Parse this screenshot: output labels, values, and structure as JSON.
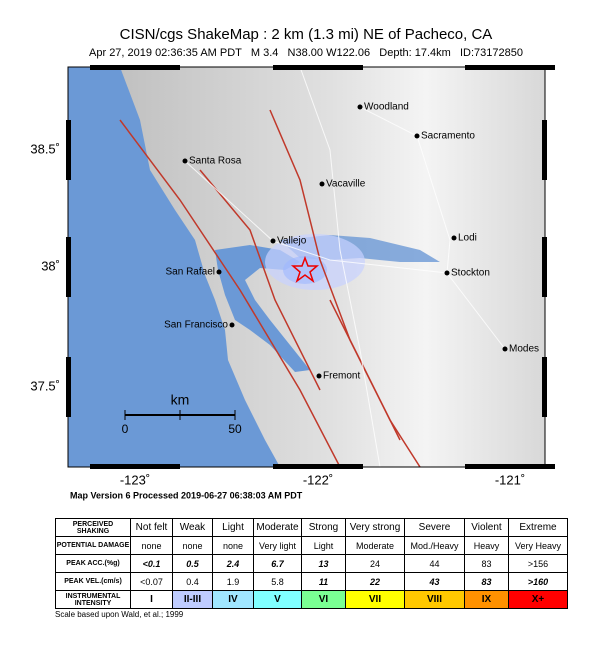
{
  "header": {
    "title": "CISN/cgs ShakeMap : 2 km (1.3 mi) NE of Pacheco, CA",
    "subtitle": "Apr 27, 2019 02:36:35 AM PDT   M 3.4   N38.00 W122.06   Depth: 17.4km   ID:73172850"
  },
  "map": {
    "lat_labels": [
      "38.5˚",
      "38˚",
      "37.5˚"
    ],
    "lon_labels": [
      "-123˚",
      "-122˚",
      "-121˚"
    ],
    "cities": [
      "Woodland",
      "Sacramento",
      "Santa Rosa",
      "Vacaville",
      "Lodi",
      "Vallejo",
      "San Rafael",
      "Stockton",
      "San Francisco",
      "Modes",
      "Fremont"
    ],
    "scale_unit": "km",
    "scale_labels": [
      "0",
      "50"
    ]
  },
  "version": "Map Version 6 Processed 2019-06-27 06:38:03 AM PDT",
  "table": {
    "rows": [
      {
        "label": "PERCEIVED SHAKING",
        "cells": [
          "Not felt",
          "Weak",
          "Light",
          "Moderate",
          "Strong",
          "Very strong",
          "Severe",
          "Violent",
          "Extreme"
        ]
      },
      {
        "label": "POTENTIAL DAMAGE",
        "cells": [
          "none",
          "none",
          "none",
          "Very light",
          "Light",
          "Moderate",
          "Mod./Heavy",
          "Heavy",
          "Very Heavy"
        ]
      },
      {
        "label": "PEAK ACC.(%g)",
        "cells": [
          "<0.1",
          "0.5",
          "2.4",
          "6.7",
          "13",
          "24",
          "44",
          "83",
          ">156"
        ]
      },
      {
        "label": "PEAK VEL.(cm/s)",
        "cells": [
          "<0.07",
          "0.4",
          "1.9",
          "5.8",
          "11",
          "22",
          "43",
          "83",
          ">160"
        ]
      },
      {
        "label": "INSTRUMENTAL INTENSITY",
        "cells": [
          "I",
          "II-III",
          "IV",
          "V",
          "VI",
          "VII",
          "VIII",
          "IX",
          "X+"
        ]
      }
    ]
  },
  "footnote": "Scale based upon Wald, et al.; 1999"
}
